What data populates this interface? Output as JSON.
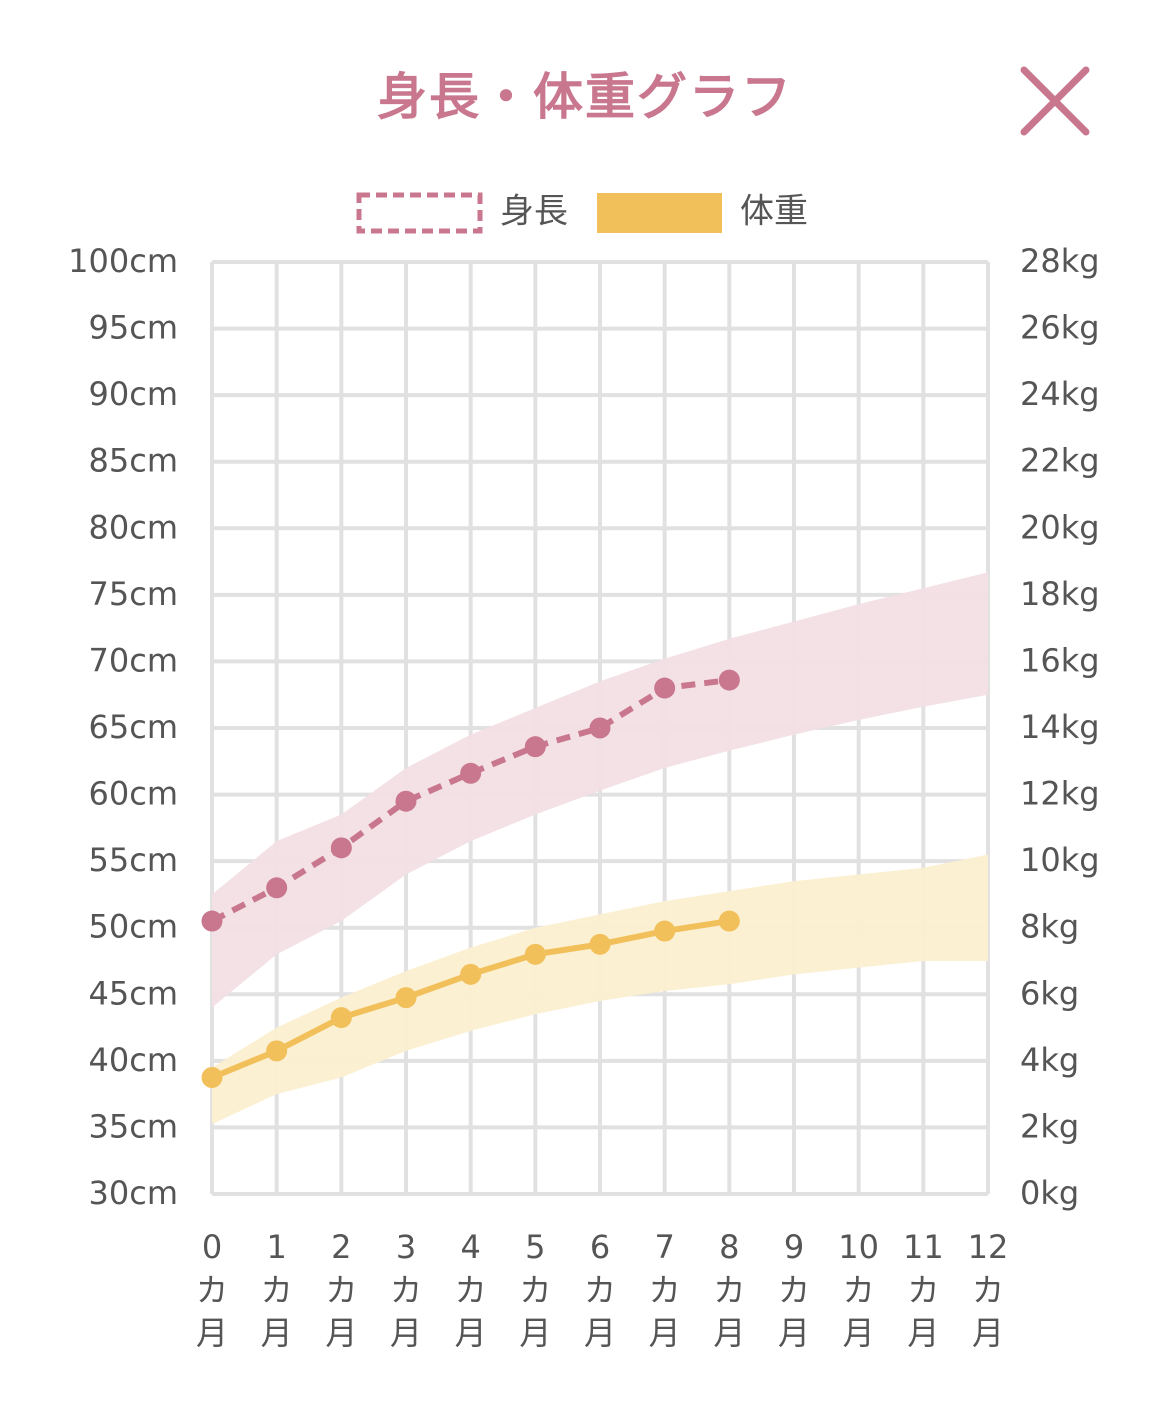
{
  "header": {
    "title": "身長・体重グラフ",
    "close_icon": "close-icon"
  },
  "colors": {
    "height": "#c9778f",
    "height_band": "#f2dfe5",
    "weight": "#f2c05a",
    "weight_band": "#fcefd0",
    "grid": "#e1e1e1",
    "text": "#555555",
    "title": "#c9778f"
  },
  "chart_data": {
    "type": "line",
    "title": "身長・体重グラフ",
    "legend_placement": "top",
    "grid": true,
    "x": [
      0,
      1,
      2,
      3,
      4,
      5,
      6,
      7,
      8,
      9,
      10,
      11,
      12
    ],
    "x_tick_labels": [
      {
        "num": "0",
        "unit1": "カ",
        "unit2": "月"
      },
      {
        "num": "1",
        "unit1": "カ",
        "unit2": "月"
      },
      {
        "num": "2",
        "unit1": "カ",
        "unit2": "月"
      },
      {
        "num": "3",
        "unit1": "カ",
        "unit2": "月"
      },
      {
        "num": "4",
        "unit1": "カ",
        "unit2": "月"
      },
      {
        "num": "5",
        "unit1": "カ",
        "unit2": "月"
      },
      {
        "num": "6",
        "unit1": "カ",
        "unit2": "月"
      },
      {
        "num": "7",
        "unit1": "カ",
        "unit2": "月"
      },
      {
        "num": "8",
        "unit1": "カ",
        "unit2": "月"
      },
      {
        "num": "9",
        "unit1": "カ",
        "unit2": "月"
      },
      {
        "num": "10",
        "unit1": "カ",
        "unit2": "月"
      },
      {
        "num": "11",
        "unit1": "カ",
        "unit2": "月"
      },
      {
        "num": "12",
        "unit1": "カ",
        "unit2": "月"
      }
    ],
    "y_left": {
      "range": [
        30,
        100
      ],
      "ticks": [
        30,
        35,
        40,
        45,
        50,
        55,
        60,
        65,
        70,
        75,
        80,
        85,
        90,
        95,
        100
      ],
      "tick_labels": [
        "30cm",
        "35cm",
        "40cm",
        "45cm",
        "50cm",
        "55cm",
        "60cm",
        "65cm",
        "70cm",
        "75cm",
        "80cm",
        "85cm",
        "90cm",
        "95cm",
        "100cm"
      ]
    },
    "y_right": {
      "range": [
        0,
        28
      ],
      "ticks": [
        0,
        2,
        4,
        6,
        8,
        10,
        12,
        14,
        16,
        18,
        20,
        22,
        24,
        26,
        28
      ],
      "tick_labels": [
        "0kg",
        "2kg",
        "4kg",
        "6kg",
        "8kg",
        "10kg",
        "12kg",
        "14kg",
        "16kg",
        "18kg",
        "20kg",
        "22kg",
        "24kg",
        "26kg",
        "28kg"
      ]
    },
    "series": [
      {
        "name": "身長",
        "axis": "left",
        "style": "dashed",
        "x": [
          0,
          1,
          2,
          3,
          4,
          5,
          6,
          7,
          8
        ],
        "values": [
          50.5,
          53.0,
          56.0,
          59.5,
          61.6,
          63.6,
          65.0,
          68.0,
          68.6
        ],
        "band": {
          "x": [
            0,
            1,
            2,
            3,
            4,
            5,
            6,
            7,
            8,
            9,
            10,
            11,
            12
          ],
          "low": [
            44.0,
            48.0,
            50.5,
            54.0,
            56.5,
            58.5,
            60.3,
            62.0,
            63.3,
            64.5,
            65.6,
            66.6,
            67.5
          ],
          "high": [
            52.5,
            56.5,
            58.5,
            62.0,
            64.5,
            66.5,
            68.5,
            70.2,
            71.7,
            73.0,
            74.3,
            75.5,
            76.7
          ]
        }
      },
      {
        "name": "体重",
        "axis": "right",
        "style": "solid",
        "x": [
          0,
          1,
          2,
          3,
          4,
          5,
          6,
          7,
          8
        ],
        "values": [
          3.5,
          4.3,
          5.3,
          5.9,
          6.6,
          7.2,
          7.5,
          7.9,
          8.2
        ],
        "band": {
          "x": [
            0,
            1,
            2,
            3,
            4,
            5,
            6,
            7,
            8,
            9,
            10,
            11,
            12
          ],
          "low": [
            2.1,
            3.0,
            3.5,
            4.3,
            4.9,
            5.4,
            5.8,
            6.1,
            6.3,
            6.6,
            6.8,
            7.0,
            7.0
          ],
          "high": [
            3.8,
            5.0,
            5.9,
            6.7,
            7.4,
            8.0,
            8.4,
            8.8,
            9.1,
            9.4,
            9.6,
            9.8,
            10.2
          ]
        }
      }
    ]
  }
}
